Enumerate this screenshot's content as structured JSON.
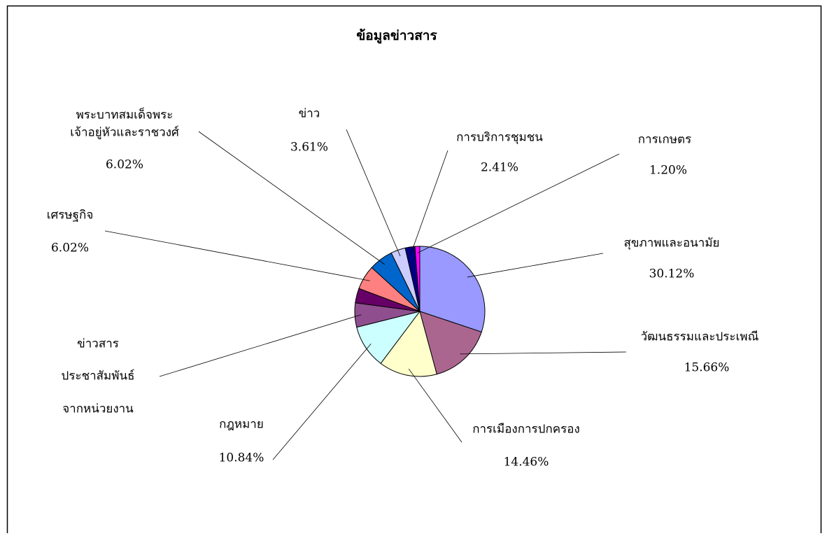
{
  "chart_data": {
    "type": "pie",
    "title": "ข้อมูลข่าวสาร",
    "categories": [
      [
        "สุขภาพและอนามัย"
      ],
      [
        "วัฒนธรรมและประเพณี"
      ],
      [
        "การเมืองการปกครอง"
      ],
      [
        "กฎหมาย"
      ],
      [
        "ข่าวสาร",
        "ประชาสัมพันธ์",
        "จากหน่วยงาน"
      ],
      null,
      [
        "เศรษฐกิจ"
      ],
      [
        "พระบาทสมเด็จพระ",
        "เจ้าอยู่หัวและราชวงศ์"
      ],
      [
        "ข่าว"
      ],
      [
        "การบริการชุมชน"
      ],
      [
        "การเกษตร"
      ]
    ],
    "values": [
      30.12,
      15.66,
      14.46,
      10.84,
      6.02,
      3.62,
      6.02,
      6.02,
      3.61,
      2.41,
      1.2
    ],
    "value_labels": [
      "30.12%",
      "15.66%",
      "14.46%",
      "10.84%",
      null,
      null,
      "6.02%",
      "6.02%",
      "3.61%",
      "2.41%",
      "1.20%"
    ],
    "colors": [
      "#9999ff",
      "#ab6690",
      "#ffffcc",
      "#ccffff",
      "#8f4f8f",
      "#660066",
      "#ff8080",
      "#0066cc",
      "#ccccff",
      "#000080",
      "#ff00ff"
    ]
  }
}
